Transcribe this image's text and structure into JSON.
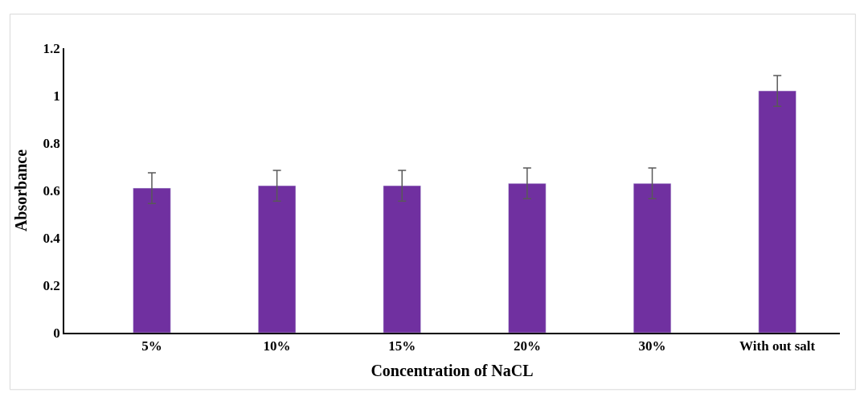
{
  "chart_data": {
    "type": "bar",
    "xlabel": "Concentration of NaCL",
    "ylabel": "Absorbance",
    "categories": [
      "5%",
      "10%",
      "15%",
      "20%",
      "30%",
      "With out salt"
    ],
    "values": [
      0.61,
      0.62,
      0.62,
      0.63,
      0.63,
      1.02
    ],
    "errors": [
      0.065,
      0.065,
      0.065,
      0.065,
      0.065,
      0.065
    ],
    "color": "#7030a0",
    "ylim": [
      0,
      1.2
    ],
    "yticks": [
      0,
      0.2,
      0.4,
      0.6,
      0.8,
      1,
      1.2
    ]
  }
}
